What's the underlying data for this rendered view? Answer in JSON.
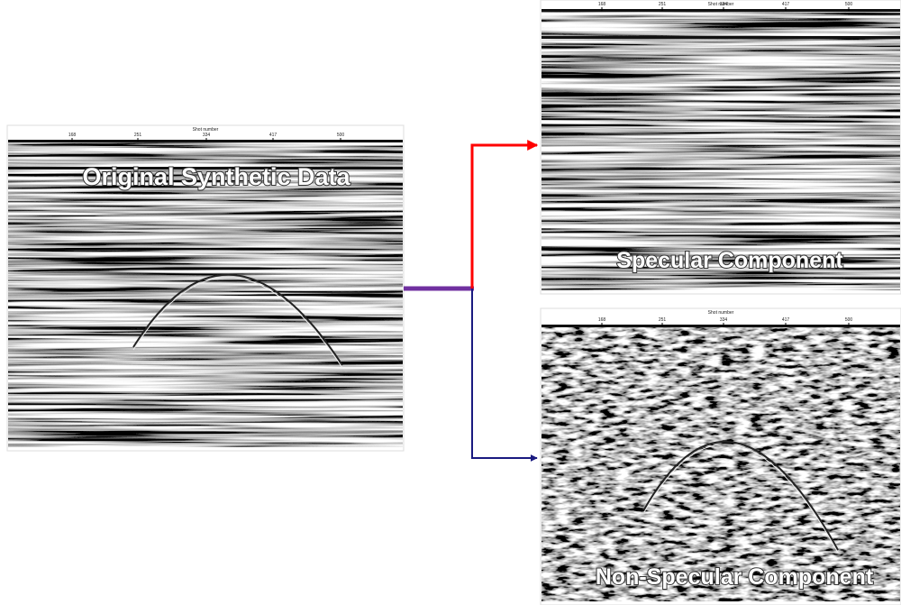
{
  "panels": [
    {
      "label": "Original Synthetic Data",
      "axis_title": "Shot number",
      "ticks": [
        "168",
        "251",
        "334",
        "417",
        "500"
      ]
    },
    {
      "label": "Specular Component",
      "axis_title": "Shot number",
      "ticks": [
        "168",
        "251",
        "334",
        "417",
        "500"
      ]
    },
    {
      "label": "Non-Specular Component",
      "axis_title": "Shot number",
      "ticks": [
        "168",
        "251",
        "334",
        "417",
        "500"
      ]
    }
  ]
}
